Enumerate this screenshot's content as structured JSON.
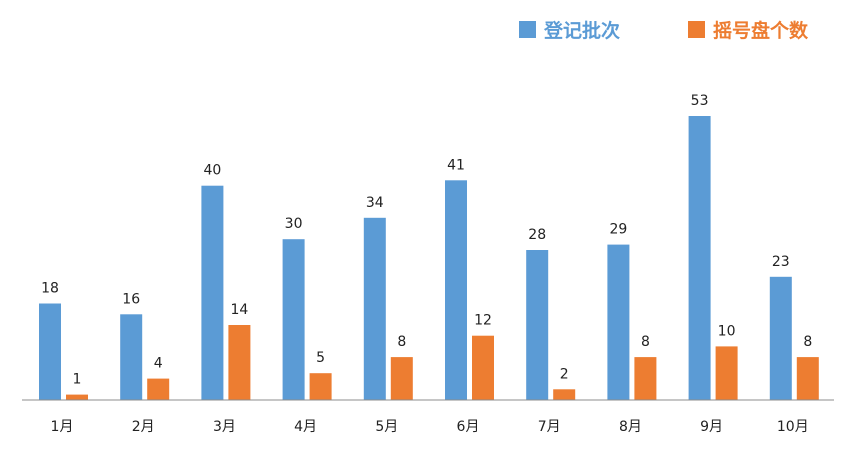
{
  "chart_data": {
    "type": "bar",
    "title": "",
    "xlabel": "",
    "ylabel": "",
    "categories": [
      "1月",
      "2月",
      "3月",
      "4月",
      "5月",
      "6月",
      "7月",
      "8月",
      "9月",
      "10月"
    ],
    "series": [
      {
        "name": "登记批次",
        "color": "#5B9BD5",
        "values": [
          18,
          16,
          40,
          30,
          34,
          41,
          28,
          29,
          53,
          23
        ]
      },
      {
        "name": "摇号盘个数",
        "color": "#ED7D31",
        "values": [
          1,
          4,
          14,
          5,
          8,
          12,
          2,
          8,
          10,
          8
        ]
      }
    ],
    "ylim": [
      0,
      55
    ],
    "grid": false,
    "legend_position": "top-right",
    "data_labels": true
  }
}
